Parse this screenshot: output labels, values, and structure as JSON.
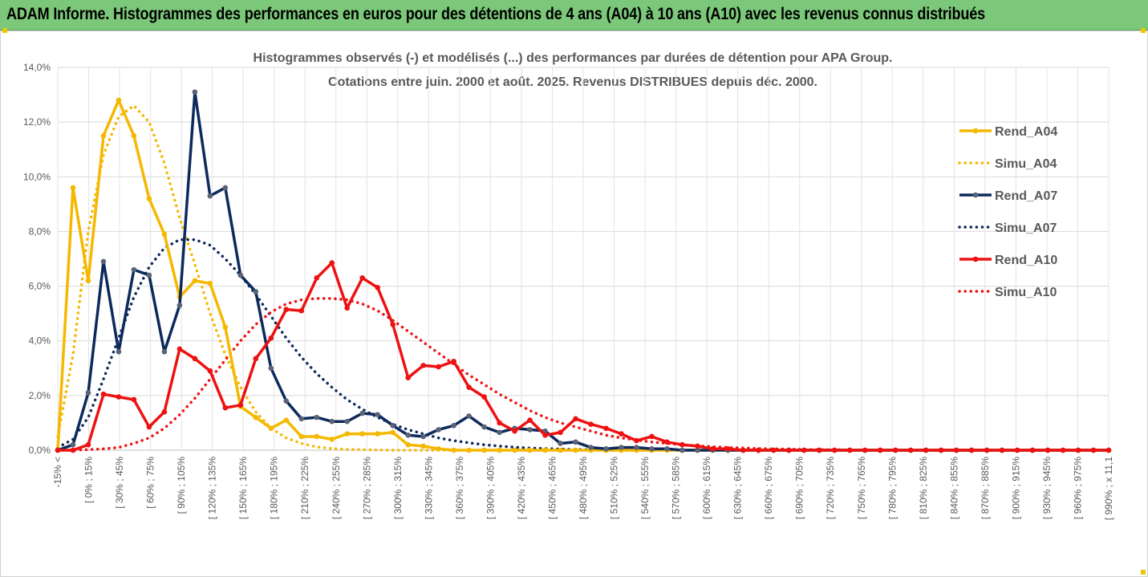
{
  "header": {
    "title": "ADAM Informe. Histogrammes des performances en euros pour des détentions de 4 ans (A04) à 10 ans (A10) avec les revenus connus distribués"
  },
  "chart_data": {
    "type": "line",
    "title": "Histogrammes observés (-) et modélisés (...) des performances par durées de détention pour APA Group.",
    "subtitle": "Cotations entre juin. 2000 et août. 2025. Revenus DISTRIBUES depuis déc. 2000.",
    "xlabel": "",
    "ylabel": "",
    "ylim": [
      0,
      14
    ],
    "yticks": [
      "0,0%",
      "2,0%",
      "4,0%",
      "6,0%",
      "8,0%",
      "10,0%",
      "12,0%",
      "14,0%"
    ],
    "grid": true,
    "legend_position": "right",
    "x_tick_labels": [
      "-15% <",
      "[ 0% ; 15% ",
      "[ 30% ; 45% ",
      "[ 60% ; 75% ",
      "[ 90% ; 105% ",
      "[ 120% ; 135% ",
      "[ 150% ; 165% ",
      "[ 180% ; 195% ",
      "[ 210% ; 225% ",
      "[ 240% ; 255% ",
      "[ 270% ; 285% ",
      "[ 300% ; 315% ",
      "[ 330% ; 345% ",
      "[ 360% ; 375% ",
      "[ 390% ; 405% ",
      "[ 420% ; 435% ",
      "[ 450% ; 465% ",
      "[ 480% ; 495% ",
      "[ 510% ; 525% ",
      "[ 540% ; 555% ",
      "[ 570% ; 585% ",
      "[ 600% ; 615% ",
      "[ 630% ; 645% ",
      "[ 660% ; 675% ",
      "[ 690% ; 705% ",
      "[ 720% ; 735% ",
      "[ 750% ; 765% ",
      "[ 780% ; 795% ",
      "[ 810% ; 825% ",
      "[ 840% ; 855% ",
      "[ 870% ; 885% ",
      "[ 900% ; 915% ",
      "[ 930% ; 945% ",
      "[ 960% ; 975% ",
      "[ 990% ; x 11,1"
    ],
    "n_bins": 70,
    "series": [
      {
        "name": "Rend_A04",
        "color": "#f5b800",
        "style": "solid",
        "marker": true,
        "values": [
          0.0,
          9.6,
          6.2,
          11.5,
          12.8,
          11.5,
          9.2,
          7.9,
          5.6,
          6.2,
          6.1,
          4.5,
          1.6,
          1.2,
          0.8,
          1.1,
          0.5,
          0.5,
          0.4,
          0.6,
          0.6,
          0.6,
          0.65,
          0.2,
          0.15,
          0.05,
          0.0,
          0.0,
          0.0,
          0.0,
          0.0,
          0.0,
          0.0,
          0.0,
          0.0,
          0.0,
          0.0,
          0.0,
          0.0,
          0.0,
          0.0,
          0.0,
          0.0,
          0.0,
          0.0,
          0.0,
          0.0,
          0.0,
          0.0,
          0.0,
          0.0,
          0.0,
          0.0,
          0.0,
          0.0,
          0.0,
          0.0,
          0.0,
          0.0,
          0.0,
          0.0,
          0.0,
          0.0,
          0.0,
          0.0,
          0.0,
          0.0,
          0.0,
          0.0,
          0.0
        ]
      },
      {
        "name": "Simu_A04",
        "color": "#f5b800",
        "style": "dotted",
        "marker": false,
        "values": [
          0.5,
          3.5,
          8.0,
          10.8,
          12.2,
          12.6,
          12.0,
          10.5,
          8.5,
          6.8,
          5.0,
          3.5,
          2.3,
          1.4,
          0.8,
          0.45,
          0.25,
          0.12,
          0.06,
          0.03,
          0.02,
          0.01,
          0.0,
          0.0,
          0.0,
          0.0,
          0.0,
          0.0,
          0.0,
          0.0,
          0.0,
          0.0,
          0.0,
          0.0,
          0.0,
          0.0,
          0.0,
          0.0,
          0.0,
          0.0,
          0.0,
          0.0,
          0.0,
          0.0,
          0.0,
          0.0,
          0.0,
          0.0,
          0.0,
          0.0,
          0.0,
          0.0,
          0.0,
          0.0,
          0.0,
          0.0,
          0.0,
          0.0,
          0.0,
          0.0,
          0.0,
          0.0,
          0.0,
          0.0,
          0.0,
          0.0,
          0.0,
          0.0,
          0.0,
          0.0
        ]
      },
      {
        "name": "Rend_A07",
        "color": "#0d2a5c",
        "style": "solid",
        "marker": true,
        "values": [
          0.0,
          0.2,
          2.1,
          6.9,
          3.6,
          6.6,
          6.4,
          3.6,
          5.3,
          13.1,
          9.3,
          9.6,
          6.4,
          5.8,
          3.0,
          1.8,
          1.15,
          1.2,
          1.05,
          1.05,
          1.35,
          1.3,
          0.9,
          0.55,
          0.5,
          0.75,
          0.9,
          1.25,
          0.85,
          0.65,
          0.8,
          0.75,
          0.7,
          0.25,
          0.3,
          0.1,
          0.05,
          0.1,
          0.1,
          0.05,
          0.05,
          0.0,
          0.0,
          0.0,
          0.0,
          0.0,
          0.0,
          0.0,
          0.0,
          0.0,
          0.0,
          0.0,
          0.0,
          0.0,
          0.0,
          0.0,
          0.0,
          0.0,
          0.0,
          0.0,
          0.0,
          0.0,
          0.0,
          0.0,
          0.0,
          0.0,
          0.0,
          0.0,
          0.0,
          0.0
        ]
      },
      {
        "name": "Simu_A07",
        "color": "#0d2a5c",
        "style": "dotted",
        "marker": false,
        "values": [
          0.1,
          0.4,
          1.2,
          2.6,
          4.1,
          5.6,
          6.7,
          7.4,
          7.7,
          7.7,
          7.5,
          7.0,
          6.4,
          5.7,
          4.9,
          4.1,
          3.4,
          2.8,
          2.3,
          1.85,
          1.5,
          1.2,
          0.95,
          0.75,
          0.6,
          0.45,
          0.35,
          0.27,
          0.2,
          0.15,
          0.11,
          0.08,
          0.06,
          0.04,
          0.03,
          0.02,
          0.01,
          0.0,
          0.0,
          0.0,
          0.0,
          0.0,
          0.0,
          0.0,
          0.0,
          0.0,
          0.0,
          0.0,
          0.0,
          0.0,
          0.0,
          0.0,
          0.0,
          0.0,
          0.0,
          0.0,
          0.0,
          0.0,
          0.0,
          0.0,
          0.0,
          0.0,
          0.0,
          0.0,
          0.0,
          0.0,
          0.0,
          0.0,
          0.0,
          0.0
        ]
      },
      {
        "name": "Rend_A10",
        "color": "#ee1111",
        "style": "solid",
        "marker": true,
        "values": [
          0.0,
          0.0,
          0.2,
          2.05,
          1.95,
          1.85,
          0.85,
          1.4,
          3.7,
          3.35,
          2.9,
          1.55,
          1.65,
          3.35,
          4.1,
          5.15,
          5.1,
          6.3,
          6.85,
          5.2,
          6.3,
          5.95,
          4.6,
          2.65,
          3.1,
          3.05,
          3.25,
          2.3,
          1.95,
          1.0,
          0.7,
          1.1,
          0.55,
          0.65,
          1.15,
          0.95,
          0.8,
          0.6,
          0.35,
          0.5,
          0.3,
          0.2,
          0.15,
          0.05,
          0.05,
          0.0,
          0.0,
          0.0,
          0.0,
          0.0,
          0.0,
          0.0,
          0.0,
          0.0,
          0.0,
          0.0,
          0.0,
          0.0,
          0.0,
          0.0,
          0.0,
          0.0,
          0.0,
          0.0,
          0.0,
          0.0,
          0.0,
          0.0,
          0.0,
          0.0
        ]
      },
      {
        "name": "Simu_A10",
        "color": "#ee1111",
        "style": "dotted",
        "marker": false,
        "values": [
          0.0,
          0.0,
          0.02,
          0.05,
          0.1,
          0.25,
          0.45,
          0.8,
          1.3,
          1.9,
          2.6,
          3.3,
          4.0,
          4.6,
          5.05,
          5.35,
          5.5,
          5.55,
          5.55,
          5.5,
          5.35,
          5.1,
          4.75,
          4.35,
          3.95,
          3.55,
          3.15,
          2.75,
          2.4,
          2.05,
          1.75,
          1.45,
          1.2,
          1.0,
          0.85,
          0.7,
          0.55,
          0.45,
          0.37,
          0.3,
          0.25,
          0.2,
          0.16,
          0.13,
          0.1,
          0.08,
          0.06,
          0.05,
          0.04,
          0.03,
          0.02,
          0.02,
          0.01,
          0.01,
          0.0,
          0.0,
          0.0,
          0.0,
          0.0,
          0.0,
          0.0,
          0.0,
          0.0,
          0.0,
          0.0,
          0.0,
          0.0,
          0.0,
          0.0,
          0.0
        ]
      }
    ]
  }
}
